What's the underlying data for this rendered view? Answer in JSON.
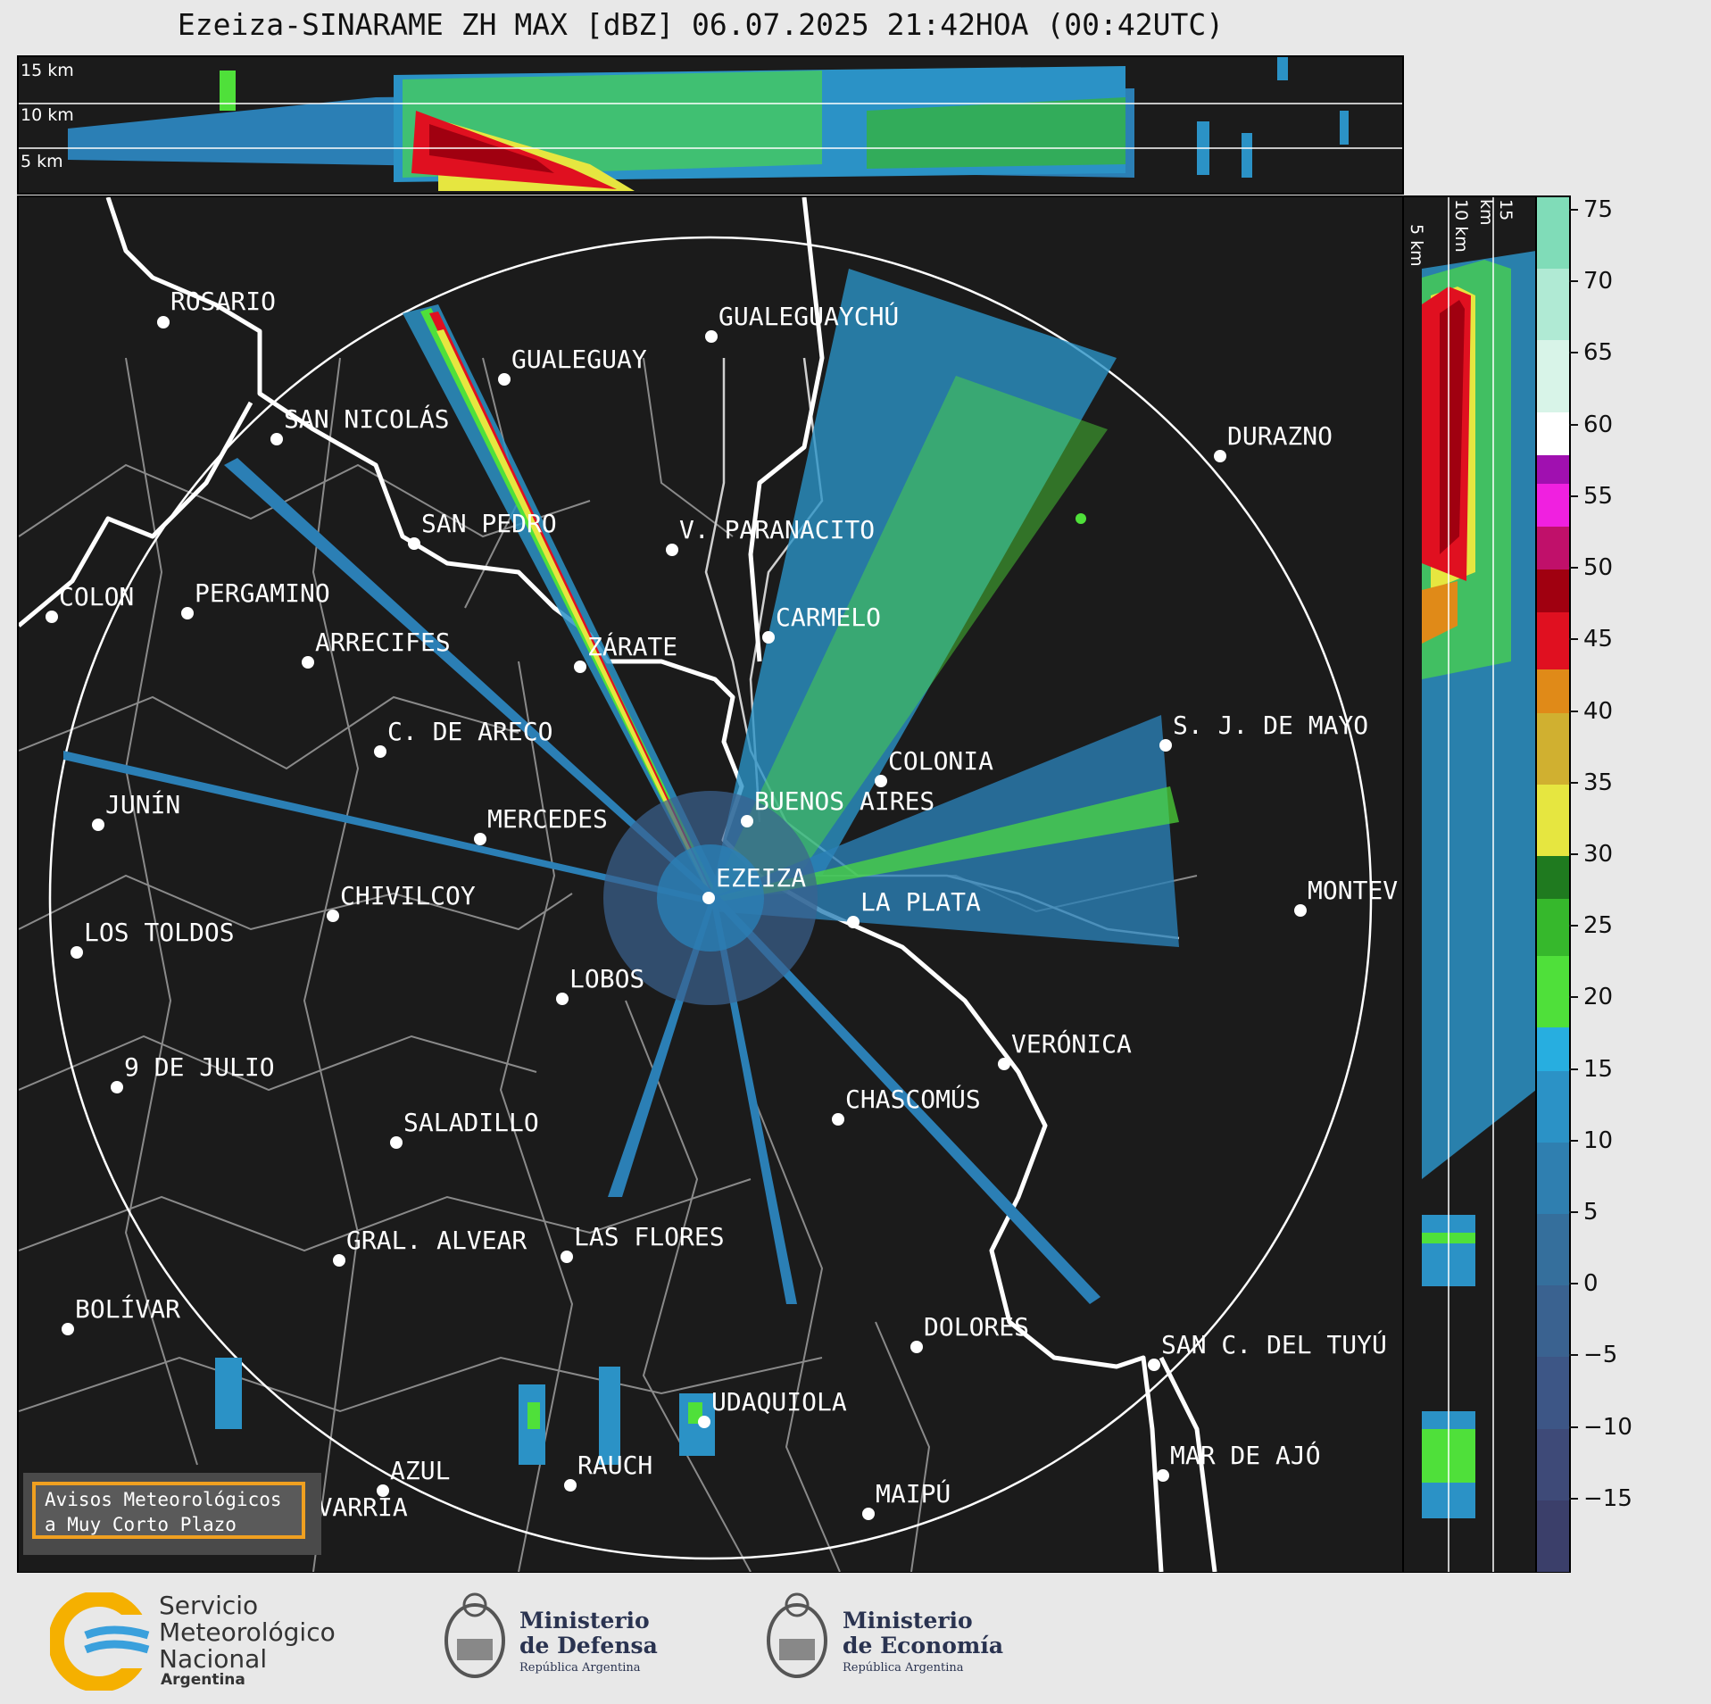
{
  "title": "Ezeiza-SINARAME ZH MAX [dBZ] 06.07.2025 21:42HOA (00:42UTC)",
  "height_levels": [
    "15 km",
    "10 km",
    "5 km"
  ],
  "side_levels": [
    "5 km",
    "10 km",
    "15 km"
  ],
  "colorbar": {
    "ticks": [
      "75",
      "70",
      "65",
      "60",
      "55",
      "50",
      "45",
      "40",
      "35",
      "30",
      "25",
      "20",
      "15",
      "10",
      "5",
      "0",
      "−5",
      "−10",
      "−15"
    ],
    "range_dbz": [
      -20,
      76
    ],
    "bands": [
      {
        "from": -20,
        "to": -15,
        "color": "#3b3f6a"
      },
      {
        "from": -15,
        "to": -10,
        "color": "#3e4a78"
      },
      {
        "from": -10,
        "to": -5,
        "color": "#3d5686"
      },
      {
        "from": -5,
        "to": 0,
        "color": "#3a6290"
      },
      {
        "from": 0,
        "to": 5,
        "color": "#356f9c"
      },
      {
        "from": 5,
        "to": 10,
        "color": "#2f7fb0"
      },
      {
        "from": 10,
        "to": 15,
        "color": "#2b92c6"
      },
      {
        "from": 15,
        "to": 18,
        "color": "#27aee0"
      },
      {
        "from": 18,
        "to": 23,
        "color": "#4fe03a"
      },
      {
        "from": 23,
        "to": 27,
        "color": "#36b82c"
      },
      {
        "from": 27,
        "to": 30,
        "color": "#1f7a1f"
      },
      {
        "from": 30,
        "to": 35,
        "color": "#e6e640"
      },
      {
        "from": 35,
        "to": 40,
        "color": "#d0b030"
      },
      {
        "from": 40,
        "to": 43,
        "color": "#e08a18"
      },
      {
        "from": 43,
        "to": 47,
        "color": "#e01020"
      },
      {
        "from": 47,
        "to": 50,
        "color": "#a00010"
      },
      {
        "from": 50,
        "to": 53,
        "color": "#c0106a"
      },
      {
        "from": 53,
        "to": 56,
        "color": "#f020e0"
      },
      {
        "from": 56,
        "to": 58,
        "color": "#a010b0"
      },
      {
        "from": 58,
        "to": 61,
        "color": "#ffffff"
      },
      {
        "from": 61,
        "to": 66,
        "color": "#d8f4e8"
      },
      {
        "from": 66,
        "to": 71,
        "color": "#b0ead4"
      },
      {
        "from": 71,
        "to": 76,
        "color": "#80dcb8"
      }
    ]
  },
  "cities": [
    {
      "name": "ROSARIO"
    },
    {
      "name": "GUALEGUAYCHÚ"
    },
    {
      "name": "GUALEGUAY"
    },
    {
      "name": "SAN NICOLÁS"
    },
    {
      "name": "DURAZNO"
    },
    {
      "name": "SAN PEDRO"
    },
    {
      "name": "V. PARANACITO"
    },
    {
      "name": "COLON"
    },
    {
      "name": "PERGAMINO"
    },
    {
      "name": "CARMELO"
    },
    {
      "name": "ARRECIFES"
    },
    {
      "name": "ZÁRATE"
    },
    {
      "name": "S. J. DE MAYO"
    },
    {
      "name": "C. DE ARECO"
    },
    {
      "name": "COLONIA"
    },
    {
      "name": "JUNÍN"
    },
    {
      "name": "BUENOS AIRES"
    },
    {
      "name": "MERCEDES"
    },
    {
      "name": "EZEIZA"
    },
    {
      "name": "MONTEV"
    },
    {
      "name": "CHIVILCOY"
    },
    {
      "name": "LA PLATA"
    },
    {
      "name": "LOS TOLDOS"
    },
    {
      "name": "LOBOS"
    },
    {
      "name": "VERÓNICA"
    },
    {
      "name": "9 DE JULIO"
    },
    {
      "name": "CHASCOMÚS"
    },
    {
      "name": "SALADILLO"
    },
    {
      "name": "GRAL. ALVEAR"
    },
    {
      "name": "LAS FLORES"
    },
    {
      "name": "BOLÍVAR"
    },
    {
      "name": "DOLORES"
    },
    {
      "name": "SAN C. DEL TUYÚ"
    },
    {
      "name": "UDAQUIOLA"
    },
    {
      "name": "MAR DE AJÓ"
    },
    {
      "name": "RAUCH"
    },
    {
      "name": "AZUL"
    },
    {
      "name": "OLAVARRÍA"
    },
    {
      "name": "MAIPÚ"
    }
  ],
  "badge": {
    "line1": "Avisos Meteorológicos",
    "line2": "a Muy Corto Plazo"
  },
  "logos": {
    "smn": {
      "line1": "Servicio",
      "line2": "Meteorológico",
      "line3": "Nacional",
      "line4": "Argentina"
    },
    "defensa": {
      "line1": "Ministerio",
      "line2": "de Defensa",
      "line3": "República Argentina"
    },
    "economia": {
      "line1": "Ministerio",
      "line2": "de Economía",
      "line3": "República Argentina"
    }
  },
  "colors": {
    "background": "#1b1b1b",
    "page": "#e8e8e8",
    "accent": "#f0a020",
    "coast": "#ffffff",
    "borders": "#808080"
  }
}
